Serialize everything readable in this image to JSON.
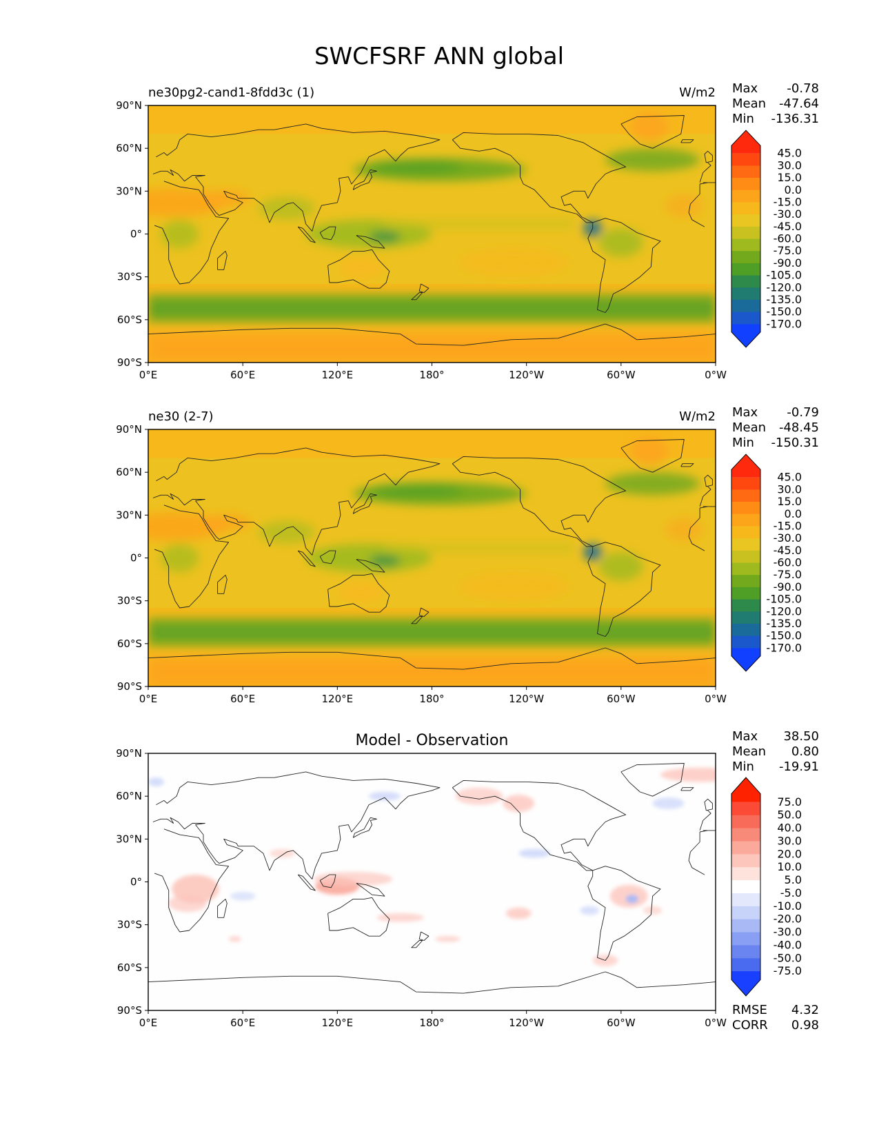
{
  "title": "SWCFSRF ANN global",
  "panels": [
    {
      "title_left": "ne30pg2-cand1-8fdd3c (1)",
      "title_center": "",
      "units": "W/m2",
      "stats": [
        {
          "label": "Max",
          "value": "-0.78"
        },
        {
          "label": "Mean",
          "value": "-47.64"
        },
        {
          "label": "Min",
          "value": "-136.31"
        }
      ],
      "colorbar_labels": [
        "45.0",
        "30.0",
        "15.0",
        "0.0",
        "-15.0",
        "-30.0",
        "-45.0",
        "-60.0",
        "-75.0",
        "-90.0",
        "-105.0",
        "-120.0",
        "-135.0",
        "-150.0",
        "-170.0"
      ],
      "colorbar_colors": [
        "#ff2a0e",
        "#ff4710",
        "#ff6a12",
        "#ff8d15",
        "#fca51a",
        "#f7b81c",
        "#e9c621",
        "#c8c120",
        "#9fba1e",
        "#73a91c",
        "#4f9e25",
        "#2e8a4a",
        "#207b70",
        "#1a6a9a",
        "#1a58cc",
        "#1240ff"
      ],
      "map_style": "model"
    },
    {
      "title_left": "ne30 (2-7)",
      "title_center": "",
      "units": "W/m2",
      "stats": [
        {
          "label": "Max",
          "value": "-0.79"
        },
        {
          "label": "Mean",
          "value": "-48.45"
        },
        {
          "label": "Min",
          "value": "-150.31"
        }
      ],
      "colorbar_labels": [
        "45.0",
        "30.0",
        "15.0",
        "0.0",
        "-15.0",
        "-30.0",
        "-45.0",
        "-60.0",
        "-75.0",
        "-90.0",
        "-105.0",
        "-120.0",
        "-135.0",
        "-150.0",
        "-170.0"
      ],
      "colorbar_colors": [
        "#ff2a0e",
        "#ff4710",
        "#ff6a12",
        "#ff8d15",
        "#fca51a",
        "#f7b81c",
        "#e9c621",
        "#c8c120",
        "#9fba1e",
        "#73a91c",
        "#4f9e25",
        "#2e8a4a",
        "#207b70",
        "#1a6a9a",
        "#1a58cc",
        "#1240ff"
      ],
      "map_style": "model"
    },
    {
      "title_left": "",
      "title_center": "Model - Observation",
      "units": "",
      "stats": [
        {
          "label": "Max",
          "value": "38.50"
        },
        {
          "label": "Mean",
          "value": "0.80"
        },
        {
          "label": "Min",
          "value": "-19.91"
        }
      ],
      "colorbar_labels": [
        "75.0",
        "50.0",
        "40.0",
        "30.0",
        "20.0",
        "10.0",
        "5.0",
        "-5.0",
        "-10.0",
        "-20.0",
        "-30.0",
        "-40.0",
        "-50.0",
        "-75.0"
      ],
      "colorbar_colors": [
        "#ff2200",
        "#fb4a36",
        "#f86b58",
        "#f88a79",
        "#faa99b",
        "#fcc6bd",
        "#fee2dc",
        "#ffffff",
        "#e3e8fc",
        "#c8d3f9",
        "#a8b9f6",
        "#889ff3",
        "#6a85f0",
        "#4a6bef",
        "#1a40ff"
      ],
      "map_style": "diff",
      "rmse": {
        "label": "RMSE",
        "value": "4.32"
      },
      "corr": {
        "label": "CORR",
        "value": "0.98"
      }
    }
  ],
  "lat_ticks": [
    "90°N",
    "60°N",
    "30°N",
    "0°",
    "30°S",
    "60°S",
    "90°S"
  ],
  "lon_ticks": [
    "0°E",
    "60°E",
    "120°E",
    "180°",
    "120°W",
    "60°W",
    "0°W"
  ],
  "chart_data": [
    {
      "type": "heatmap",
      "title": "ne30pg2-cand1-8fdd3c (1)",
      "units": "W/m2",
      "x_range": [
        "0°E",
        "0°W"
      ],
      "y_range": [
        "90°S",
        "90°N"
      ],
      "levels": [
        -170,
        -150,
        -135,
        -120,
        -105,
        -90,
        -75,
        -60,
        -45,
        -30,
        -15,
        0,
        15,
        30,
        45
      ],
      "stats": {
        "max": -0.78,
        "mean": -47.64,
        "min": -136.31
      }
    },
    {
      "type": "heatmap",
      "title": "ne30 (2-7)",
      "units": "W/m2",
      "x_range": [
        "0°E",
        "0°W"
      ],
      "y_range": [
        "90°S",
        "90°N"
      ],
      "levels": [
        -170,
        -150,
        -135,
        -120,
        -105,
        -90,
        -75,
        -60,
        -45,
        -30,
        -15,
        0,
        15,
        30,
        45
      ],
      "stats": {
        "max": -0.79,
        "mean": -48.45,
        "min": -150.31
      }
    },
    {
      "type": "heatmap",
      "title": "Model - Observation",
      "x_range": [
        "0°E",
        "0°W"
      ],
      "y_range": [
        "90°S",
        "90°N"
      ],
      "levels": [
        -75,
        -50,
        -40,
        -30,
        -20,
        -10,
        -5,
        5,
        10,
        20,
        30,
        40,
        50,
        75
      ],
      "stats": {
        "max": 38.5,
        "mean": 0.8,
        "min": -19.91,
        "rmse": 4.32,
        "corr": 0.98
      }
    }
  ]
}
